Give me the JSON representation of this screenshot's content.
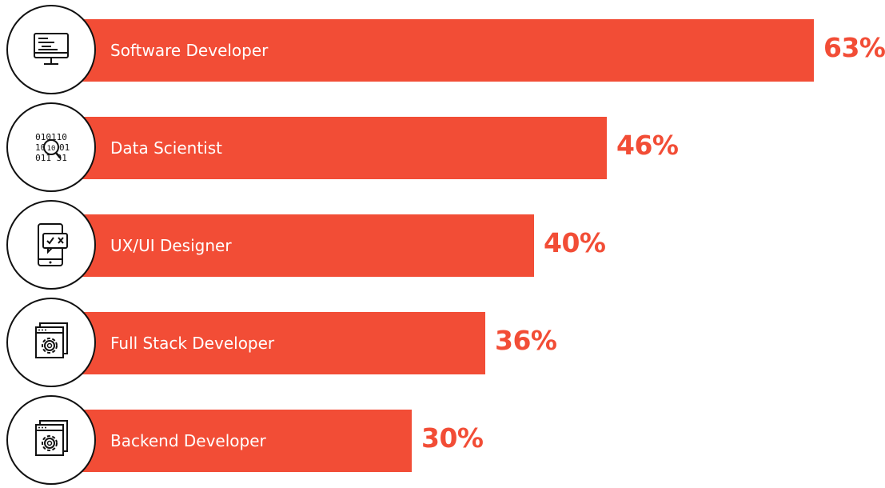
{
  "chart_data": {
    "type": "bar",
    "orientation": "horizontal",
    "categories": [
      "Software Developer",
      "Data Scientist",
      "UX/UI Designer",
      "Full Stack Developer",
      "Backend Developer"
    ],
    "values": [
      63,
      46,
      40,
      36,
      30
    ],
    "value_labels": [
      "63%",
      "46%",
      "40%",
      "36%",
      "30%"
    ],
    "icons": [
      "monitor-code-icon",
      "binary-search-icon",
      "mobile-review-icon",
      "settings-window-icon",
      "settings-window-icon"
    ],
    "xlim": [
      0,
      63
    ],
    "grid": false,
    "legend": "none",
    "colors": {
      "bar": "#f24d36",
      "value_text": "#f24d36",
      "label_text": "#ffffff",
      "icon_stroke": "#111111"
    }
  }
}
